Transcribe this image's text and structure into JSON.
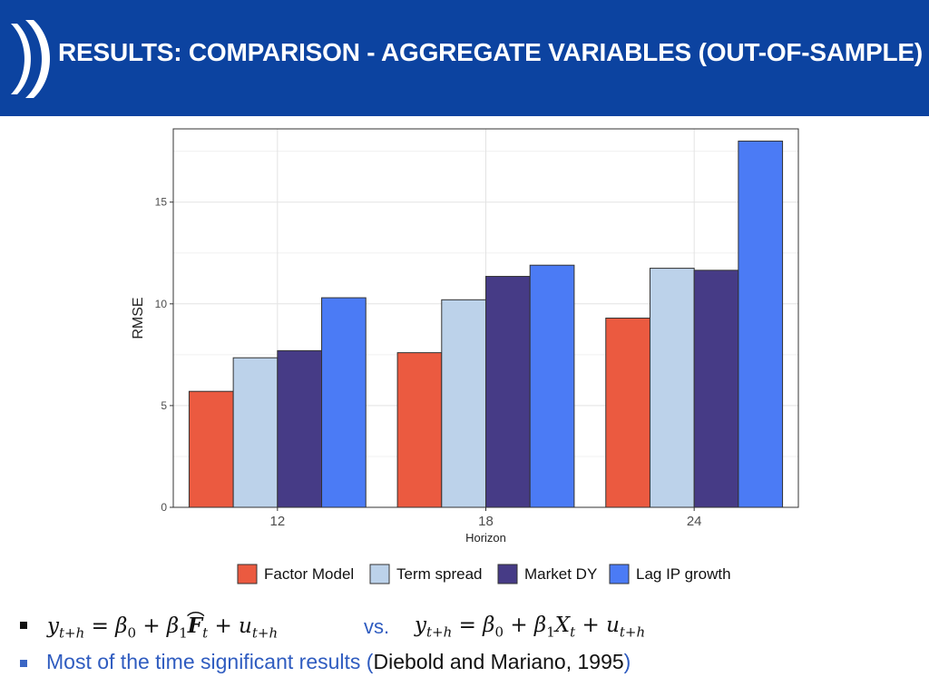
{
  "header": {
    "title": "RESULTS: COMPARISON - AGGREGATE VARIABLES (OUT-OF-SAMPLE)",
    "background_color": "#0c43a0",
    "logo_icon": "double-parenthesis-logo"
  },
  "chart_data": {
    "type": "bar",
    "title": "",
    "xlabel": "Horizon",
    "ylabel": "RMSE",
    "categories": [
      "12",
      "18",
      "24"
    ],
    "ylim": [
      0,
      18.6
    ],
    "yticks": [
      0,
      5,
      10,
      15
    ],
    "grid": true,
    "legend_position": "bottom",
    "series": [
      {
        "name": "Factor Model",
        "color": "#eb5a40",
        "values": [
          5.7,
          7.6,
          9.3
        ]
      },
      {
        "name": "Term spread",
        "color": "#bcd2ea",
        "values": [
          7.35,
          10.2,
          11.75
        ]
      },
      {
        "name": "Market DY",
        "color": "#463b86",
        "values": [
          7.7,
          11.35,
          11.65
        ]
      },
      {
        "name": "Lag IP growth",
        "color": "#4b7bf5",
        "values": [
          10.3,
          11.9,
          18.0
        ]
      }
    ]
  },
  "bullets": {
    "vs_label": "vs.",
    "formula_left": {
      "y": "y",
      "y_sub": "t+h",
      "eq": "=",
      "beta0": "β",
      "beta0_sub": "0",
      "plus1": "+",
      "beta1": "β",
      "beta1_sub": "1",
      "factor": "F",
      "factor_sub": "t",
      "plus2": "+",
      "u": "u",
      "u_sub": "t+h"
    },
    "formula_right": {
      "y": "y",
      "y_sub": "t+h",
      "eq": "=",
      "beta0": "β",
      "beta0_sub": "0",
      "plus1": "+",
      "beta1": "β",
      "beta1_sub": "1",
      "x": "X",
      "x_sub": "t",
      "plus2": "+",
      "u": "u",
      "u_sub": "t+h"
    },
    "significance_text": "Most of the time significant results (",
    "citation": "Diebold and Mariano, 1995",
    "closing_paren": ")"
  }
}
